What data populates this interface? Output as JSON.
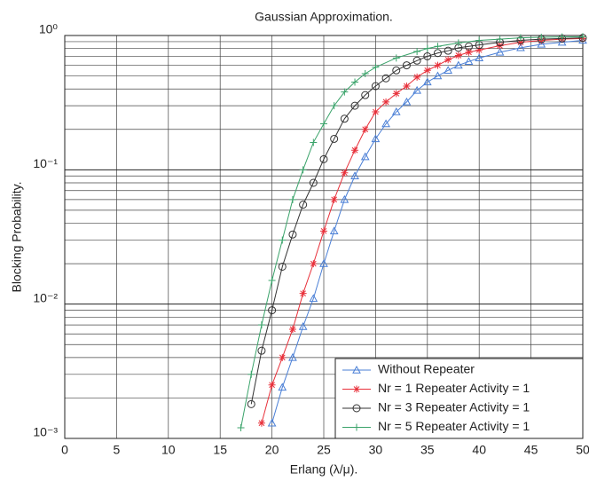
{
  "chart_data": {
    "type": "line",
    "title": "Gaussian Approximation.",
    "xlabel": "Erlang (λ/μ).",
    "ylabel": "Blocking Probability.",
    "xlim": [
      0,
      50
    ],
    "xticks": [
      0,
      5,
      10,
      15,
      20,
      25,
      30,
      35,
      40,
      45,
      50
    ],
    "ylim": [
      0.001,
      1
    ],
    "log_y": true,
    "grid": true,
    "legend": "lower right",
    "yticks": [
      {
        "value": 1,
        "label": "10⁰"
      },
      {
        "value": 0.1,
        "label": "10⁻¹"
      },
      {
        "value": 0.01,
        "label": "10⁻²"
      },
      {
        "value": 0.001,
        "label": "10⁻³"
      }
    ],
    "series": [
      {
        "name": "Without Repeater",
        "color": "#4a7fd6",
        "marker": "triangle",
        "x": [
          20,
          21,
          22,
          23,
          24,
          25,
          26,
          27,
          28,
          29,
          30,
          31,
          32,
          33,
          34,
          35,
          36,
          37,
          38,
          39,
          40,
          42,
          44,
          46,
          48,
          50
        ],
        "values": [
          0.0013,
          0.0024,
          0.004,
          0.0068,
          0.011,
          0.02,
          0.035,
          0.06,
          0.09,
          0.125,
          0.17,
          0.22,
          0.27,
          0.32,
          0.39,
          0.45,
          0.5,
          0.55,
          0.6,
          0.64,
          0.68,
          0.75,
          0.81,
          0.86,
          0.89,
          0.92
        ]
      },
      {
        "name": "Nr = 1 Repeater Activity = 1",
        "color": "#e8303a",
        "marker": "star",
        "x": [
          19,
          20,
          21,
          22,
          23,
          24,
          25,
          26,
          27,
          28,
          29,
          30,
          31,
          32,
          33,
          34,
          35,
          36,
          37,
          38,
          39,
          40,
          42,
          44,
          46,
          48,
          50
        ],
        "values": [
          0.0013,
          0.0025,
          0.004,
          0.0065,
          0.012,
          0.02,
          0.035,
          0.06,
          0.095,
          0.14,
          0.2,
          0.27,
          0.32,
          0.37,
          0.42,
          0.49,
          0.55,
          0.6,
          0.66,
          0.71,
          0.75,
          0.78,
          0.84,
          0.89,
          0.92,
          0.94,
          0.95
        ]
      },
      {
        "name": "Nr = 3 Repeater Activity = 1",
        "color": "#333333",
        "marker": "circle",
        "x": [
          18,
          19,
          20,
          21,
          22,
          23,
          24,
          25,
          26,
          27,
          28,
          29,
          30,
          31,
          32,
          33,
          34,
          35,
          36,
          37,
          38,
          39,
          40,
          42,
          44,
          46,
          48,
          50
        ],
        "values": [
          0.0018,
          0.0045,
          0.009,
          0.019,
          0.033,
          0.055,
          0.08,
          0.12,
          0.17,
          0.24,
          0.3,
          0.36,
          0.42,
          0.48,
          0.55,
          0.6,
          0.65,
          0.7,
          0.74,
          0.77,
          0.81,
          0.83,
          0.85,
          0.89,
          0.92,
          0.94,
          0.95,
          0.96
        ]
      },
      {
        "name": "Nr = 5 Repeater Activity = 1",
        "color": "#3aa36a",
        "marker": "plus",
        "x": [
          17,
          18,
          19,
          20,
          21,
          22,
          23,
          24,
          25,
          26,
          27,
          28,
          29,
          30,
          32,
          34,
          35,
          36,
          38,
          40,
          42,
          44,
          46,
          48,
          50
        ],
        "values": [
          0.0012,
          0.003,
          0.007,
          0.015,
          0.03,
          0.06,
          0.1,
          0.16,
          0.22,
          0.3,
          0.38,
          0.45,
          0.52,
          0.58,
          0.68,
          0.76,
          0.8,
          0.83,
          0.88,
          0.92,
          0.94,
          0.96,
          0.97,
          0.975,
          0.98
        ]
      }
    ]
  }
}
